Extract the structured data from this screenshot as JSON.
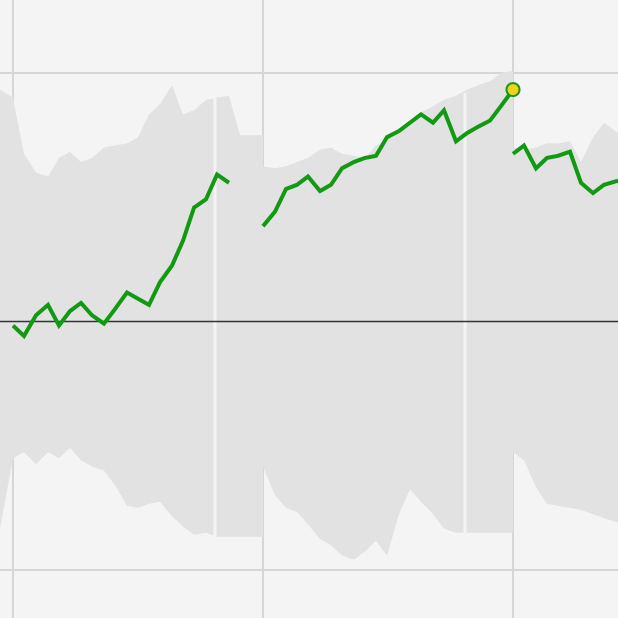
{
  "chart_data": {
    "type": "line",
    "title": "",
    "xlabel": "",
    "ylabel": "",
    "xlim": [
      0,
      618
    ],
    "ylim": [
      -1.2,
      1.2
    ],
    "grid": true,
    "legend": "none",
    "zero_line": 0,
    "x_gridlines": [
      13,
      263,
      513
    ],
    "y_gridlines": [
      1.2,
      0.0,
      -1.2
    ],
    "colors": {
      "background": "#f4f4f4",
      "grid": "#d6d6d6",
      "band": "#e2e2e2",
      "separator": "#f4f4f4",
      "zero_line": "#333333",
      "line": "#119911",
      "marker_fill": "#f3d21a",
      "marker_stroke": "#119911"
    },
    "separators": [
      215,
      465
    ],
    "series": [
      {
        "segment": 1,
        "x": [
          13,
          24,
          36,
          48,
          59,
          70,
          81,
          92,
          104,
          115,
          127,
          138,
          149,
          160,
          172,
          183,
          194,
          206,
          217,
          229
        ],
        "values": [
          -0.02,
          -0.07,
          0.03,
          0.08,
          -0.02,
          0.05,
          0.09,
          0.03,
          -0.01,
          0.06,
          0.14,
          0.11,
          0.08,
          0.19,
          0.27,
          0.39,
          0.55,
          0.59,
          0.71,
          0.67
        ]
      },
      {
        "segment": 2,
        "x": [
          263,
          275,
          286,
          297,
          308,
          320,
          331,
          342,
          354,
          365,
          376,
          387,
          399,
          410,
          421,
          433,
          444,
          456,
          467,
          478,
          490,
          501,
          513
        ],
        "values": [
          0.46,
          0.53,
          0.64,
          0.66,
          0.7,
          0.63,
          0.66,
          0.74,
          0.77,
          0.79,
          0.8,
          0.89,
          0.92,
          0.96,
          1.0,
          0.96,
          1.02,
          0.87,
          0.91,
          0.94,
          0.97,
          1.04,
          1.12
        ]
      },
      {
        "segment": 3,
        "x": [
          513,
          524,
          536,
          547,
          558,
          570,
          581,
          593,
          604,
          618
        ],
        "values": [
          0.81,
          0.85,
          0.74,
          0.79,
          0.8,
          0.82,
          0.67,
          0.62,
          0.66,
          0.68
        ]
      }
    ],
    "band": [
      {
        "x": [
          0,
          13,
          24,
          36,
          48,
          59,
          70,
          81,
          92,
          104,
          115,
          127,
          138,
          149,
          160,
          172,
          183,
          194,
          206,
          217,
          229,
          240,
          263
        ],
        "upper": [
          1.12,
          1.08,
          0.81,
          0.72,
          0.7,
          0.79,
          0.82,
          0.77,
          0.79,
          0.84,
          0.85,
          0.86,
          0.89,
          1.0,
          1.05,
          1.14,
          1.0,
          1.02,
          1.07,
          1.08,
          1.09,
          0.9,
          0.9
        ],
        "lower": [
          -1.0,
          -0.66,
          -0.63,
          -0.69,
          -0.63,
          -0.66,
          -0.61,
          -0.67,
          -0.7,
          -0.72,
          -0.79,
          -0.89,
          -0.9,
          -0.88,
          -0.87,
          -0.94,
          -0.99,
          -1.03,
          -1.02,
          -1.04,
          -1.04,
          -1.04,
          -1.04
        ]
      },
      {
        "x": [
          263,
          275,
          286,
          297,
          308,
          320,
          331,
          342,
          354,
          365,
          376,
          387,
          399,
          410,
          421,
          433,
          444,
          456,
          467,
          478,
          490,
          501,
          513
        ],
        "upper": [
          0.75,
          0.74,
          0.75,
          0.77,
          0.79,
          0.83,
          0.84,
          0.81,
          0.8,
          0.79,
          0.85,
          0.88,
          0.92,
          0.97,
          1.01,
          1.04,
          1.07,
          1.09,
          1.12,
          1.14,
          1.16,
          1.2,
          1.21
        ],
        "lower": [
          -0.7,
          -0.84,
          -0.9,
          -0.92,
          -0.98,
          -1.05,
          -1.08,
          -1.13,
          -1.15,
          -1.11,
          -1.06,
          -1.13,
          -0.93,
          -0.81,
          -0.87,
          -0.93,
          -1.0,
          -1.02,
          -1.02,
          -1.02,
          -1.02,
          -1.02,
          -1.02
        ]
      },
      {
        "x": [
          513,
          524,
          536,
          547,
          558,
          570,
          581,
          593,
          604,
          618
        ],
        "upper": [
          0.84,
          0.83,
          0.84,
          0.86,
          0.86,
          0.87,
          0.77,
          0.89,
          0.96,
          0.91
        ],
        "lower": [
          -0.63,
          -0.67,
          -0.8,
          -0.88,
          -0.89,
          -0.9,
          -0.91,
          -0.93,
          -0.95,
          -0.97
        ]
      }
    ],
    "highlight_point": {
      "x": 513,
      "y": 1.12
    }
  }
}
